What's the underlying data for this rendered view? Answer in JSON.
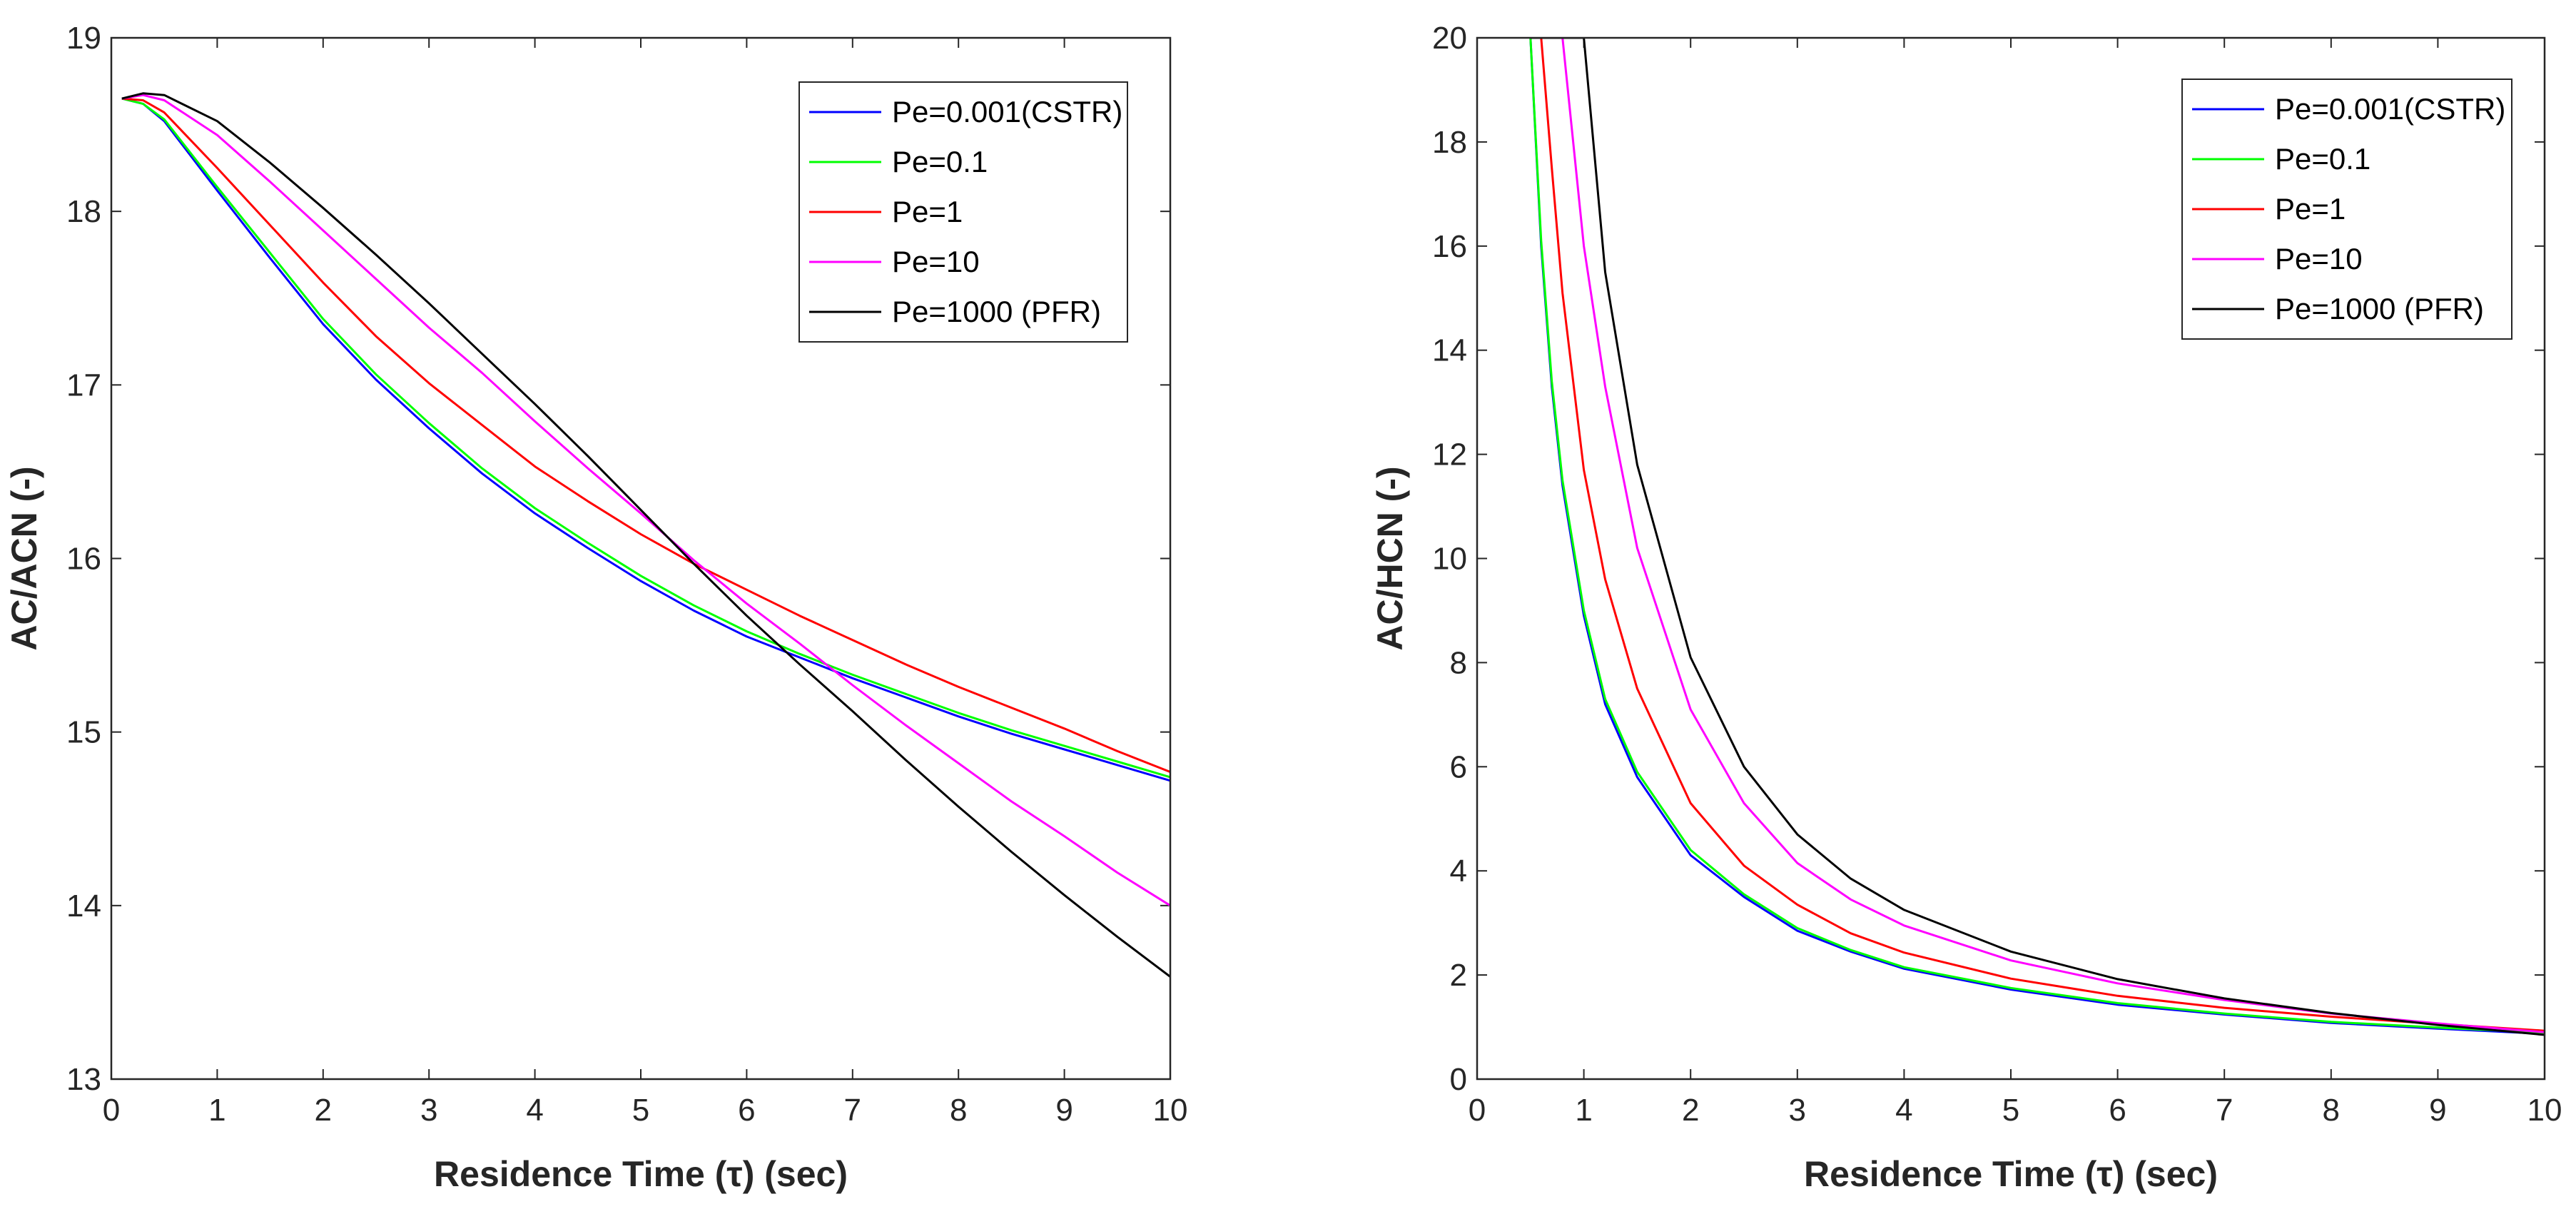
{
  "chart_data": [
    {
      "type": "line",
      "title": "",
      "xlabel": "Residence Time (τ) (sec)",
      "ylabel": "AC/ACN (-)",
      "xlim": [
        0,
        10
      ],
      "ylim": [
        13,
        19
      ],
      "xticks": [
        "0",
        "1",
        "2",
        "3",
        "4",
        "5",
        "6",
        "7",
        "8",
        "9",
        "10"
      ],
      "yticks": [
        "13",
        "14",
        "15",
        "16",
        "17",
        "18",
        "19"
      ],
      "legend_position": "top-right",
      "x": [
        0.1,
        0.3,
        0.5,
        1,
        1.5,
        2,
        2.5,
        3,
        3.5,
        4,
        4.5,
        5,
        5.5,
        6,
        6.5,
        7,
        7.5,
        8,
        8.5,
        9,
        9.5,
        10
      ],
      "series": [
        {
          "name": "Pe=0.001(CSTR)",
          "color": "#0000ff",
          "values": [
            18.65,
            18.62,
            18.52,
            18.12,
            17.73,
            17.35,
            17.03,
            16.75,
            16.49,
            16.26,
            16.06,
            15.87,
            15.7,
            15.55,
            15.43,
            15.31,
            15.2,
            15.09,
            14.99,
            14.9,
            14.81,
            14.72
          ]
        },
        {
          "name": "Pe=0.1",
          "color": "#00ff00",
          "values": [
            18.65,
            18.62,
            18.53,
            18.14,
            17.76,
            17.38,
            17.06,
            16.78,
            16.52,
            16.29,
            16.09,
            15.9,
            15.73,
            15.58,
            15.45,
            15.33,
            15.22,
            15.11,
            15.01,
            14.92,
            14.83,
            14.74
          ]
        },
        {
          "name": "Pe=1",
          "color": "#ff0000",
          "values": [
            18.65,
            18.64,
            18.57,
            18.25,
            17.92,
            17.59,
            17.28,
            17.01,
            16.77,
            16.53,
            16.33,
            16.14,
            15.97,
            15.82,
            15.67,
            15.53,
            15.39,
            15.26,
            15.14,
            15.02,
            14.89,
            14.77
          ]
        },
        {
          "name": "Pe=10",
          "color": "#ff00ff",
          "values": [
            18.65,
            18.67,
            18.64,
            18.44,
            18.17,
            17.89,
            17.61,
            17.33,
            17.07,
            16.79,
            16.52,
            16.26,
            15.99,
            15.74,
            15.51,
            15.27,
            15.04,
            14.82,
            14.6,
            14.4,
            14.19,
            14.0
          ]
        },
        {
          "name": "Pe=1000 (PFR)",
          "color": "#000000",
          "values": [
            18.65,
            18.68,
            18.67,
            18.52,
            18.28,
            18.02,
            17.75,
            17.47,
            17.18,
            16.89,
            16.59,
            16.28,
            15.97,
            15.67,
            15.39,
            15.12,
            14.84,
            14.57,
            14.31,
            14.06,
            13.82,
            13.59
          ]
        }
      ]
    },
    {
      "type": "line",
      "title": "",
      "xlabel": "Residence Time (τ) (sec)",
      "ylabel": "AC/HCN (-)",
      "xlim": [
        0,
        10
      ],
      "ylim": [
        0,
        20
      ],
      "xticks": [
        "0",
        "1",
        "2",
        "3",
        "4",
        "5",
        "6",
        "7",
        "8",
        "9",
        "10"
      ],
      "yticks": [
        "0",
        "2",
        "4",
        "6",
        "8",
        "10",
        "12",
        "14",
        "16",
        "18",
        "20"
      ],
      "legend_position": "top-right",
      "x": [
        0.5,
        0.6,
        0.7,
        0.8,
        1,
        1.2,
        1.5,
        2,
        2.5,
        3,
        3.5,
        4,
        5,
        6,
        7,
        8,
        9,
        10
      ],
      "series": [
        {
          "name": "Pe=0.001(CSTR)",
          "color": "#0000ff",
          "values": [
            20.0,
            16.0,
            13.3,
            11.4,
            8.9,
            7.2,
            5.8,
            4.3,
            3.5,
            2.85,
            2.45,
            2.12,
            1.72,
            1.43,
            1.24,
            1.08,
            0.97,
            0.87
          ]
        },
        {
          "name": "Pe=0.1",
          "color": "#00ff00",
          "values": [
            20.0,
            16.1,
            13.4,
            11.5,
            9.0,
            7.3,
            5.9,
            4.4,
            3.55,
            2.9,
            2.48,
            2.15,
            1.75,
            1.46,
            1.26,
            1.1,
            0.99,
            0.89
          ]
        },
        {
          "name": "Pe=1",
          "color": "#ff0000",
          "values": [
            20.0,
            20.0,
            17.5,
            15.1,
            11.7,
            9.6,
            7.5,
            5.3,
            4.1,
            3.35,
            2.8,
            2.43,
            1.93,
            1.6,
            1.37,
            1.2,
            1.06,
            0.93
          ]
        },
        {
          "name": "Pe=10",
          "color": "#ff00ff",
          "values": [
            20.0,
            20.0,
            20.0,
            20.0,
            16.0,
            13.3,
            10.2,
            7.1,
            5.3,
            4.15,
            3.45,
            2.95,
            2.28,
            1.84,
            1.52,
            1.26,
            1.07,
            0.9
          ]
        },
        {
          "name": "Pe=1000 (PFR)",
          "color": "#000000",
          "values": [
            20.0,
            20.0,
            20.0,
            20.0,
            20.0,
            15.5,
            11.8,
            8.1,
            6.0,
            4.7,
            3.85,
            3.25,
            2.45,
            1.92,
            1.55,
            1.27,
            1.04,
            0.85
          ]
        }
      ]
    }
  ]
}
